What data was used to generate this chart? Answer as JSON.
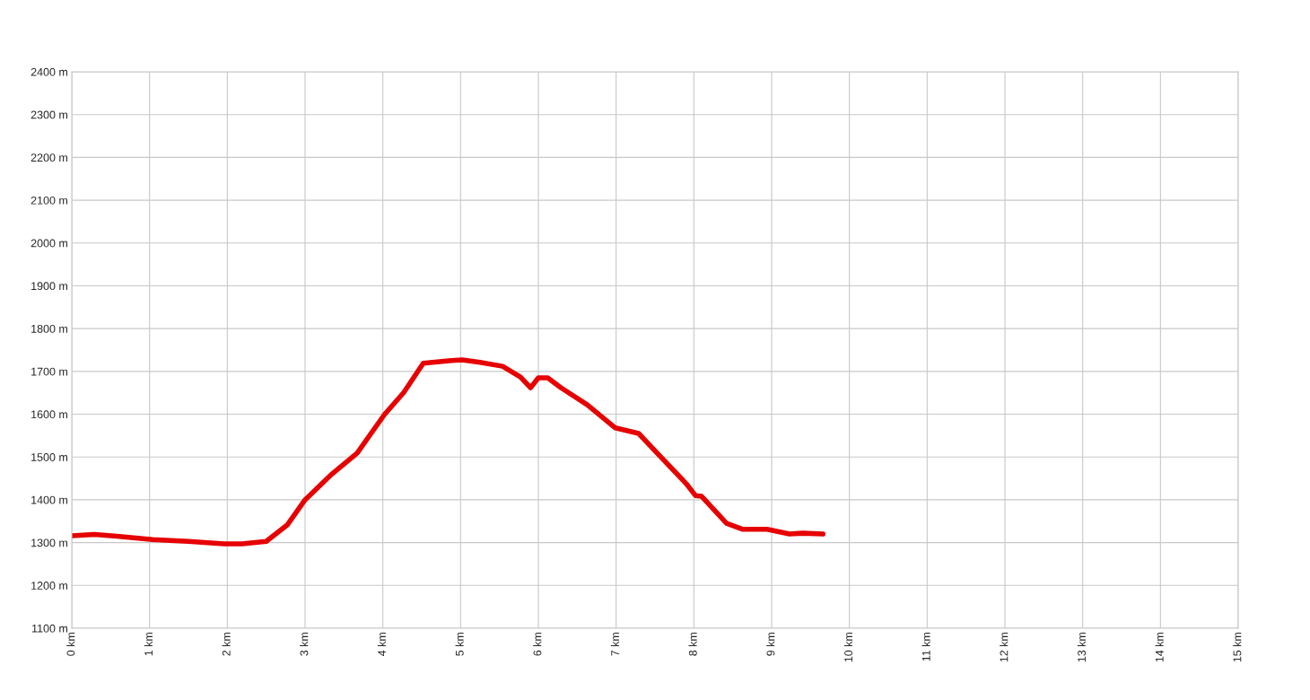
{
  "chart_data": {
    "type": "line",
    "grid": true,
    "marker": "none",
    "line_style": "solid",
    "xlim": [
      0,
      15
    ],
    "ylim": [
      1100,
      2400
    ],
    "xticks": [
      {
        "value": 0,
        "label": "0 km"
      },
      {
        "value": 1,
        "label": "1 km"
      },
      {
        "value": 2,
        "label": "2 km"
      },
      {
        "value": 3,
        "label": "3 km"
      },
      {
        "value": 4,
        "label": "4 km"
      },
      {
        "value": 5,
        "label": "5 km"
      },
      {
        "value": 6,
        "label": "6 km"
      },
      {
        "value": 7,
        "label": "7 km"
      },
      {
        "value": 8,
        "label": "8 km"
      },
      {
        "value": 9,
        "label": "9 km"
      },
      {
        "value": 10,
        "label": "10 km"
      },
      {
        "value": 11,
        "label": "11 km"
      },
      {
        "value": 12,
        "label": "12 km"
      },
      {
        "value": 13,
        "label": "13 km"
      },
      {
        "value": 14,
        "label": "14 km"
      },
      {
        "value": 15,
        "label": "15 km"
      }
    ],
    "yticks": [
      {
        "value": 1100,
        "label": "1100 m"
      },
      {
        "value": 1200,
        "label": "1200 m"
      },
      {
        "value": 1300,
        "label": "1300 m"
      },
      {
        "value": 1400,
        "label": "1400 m"
      },
      {
        "value": 1500,
        "label": "1500 m"
      },
      {
        "value": 1600,
        "label": "1600 m"
      },
      {
        "value": 1700,
        "label": "1700 m"
      },
      {
        "value": 1800,
        "label": "1800 m"
      },
      {
        "value": 1900,
        "label": "1900 m"
      },
      {
        "value": 2000,
        "label": "2000 m"
      },
      {
        "value": 2100,
        "label": "2100 m"
      },
      {
        "value": 2200,
        "label": "2200 m"
      },
      {
        "value": 2300,
        "label": "2300 m"
      },
      {
        "value": 2400,
        "label": "2400 m"
      }
    ],
    "series": [
      {
        "color": "#e60000",
        "x": [
          0,
          0.29,
          0.58,
          1.04,
          1.5,
          1.96,
          2.19,
          2.5,
          2.77,
          3.0,
          3.35,
          3.67,
          4.02,
          4.27,
          4.52,
          4.85,
          5.02,
          5.25,
          5.54,
          5.77,
          5.9,
          6.0,
          6.12,
          6.29,
          6.63,
          6.99,
          7.29,
          7.56,
          7.9,
          8.02,
          8.1,
          8.42,
          8.63,
          8.94,
          9.23,
          9.4,
          9.66
        ],
        "values": [
          1316,
          1319,
          1315,
          1307,
          1303,
          1297,
          1297,
          1303,
          1341,
          1400,
          1461,
          1509,
          1599,
          1651,
          1719,
          1725,
          1727,
          1721,
          1712,
          1687,
          1662,
          1685,
          1685,
          1662,
          1622,
          1568,
          1555,
          1503,
          1438,
          1410,
          1408,
          1345,
          1331,
          1331,
          1320,
          1322,
          1320
        ]
      }
    ]
  }
}
